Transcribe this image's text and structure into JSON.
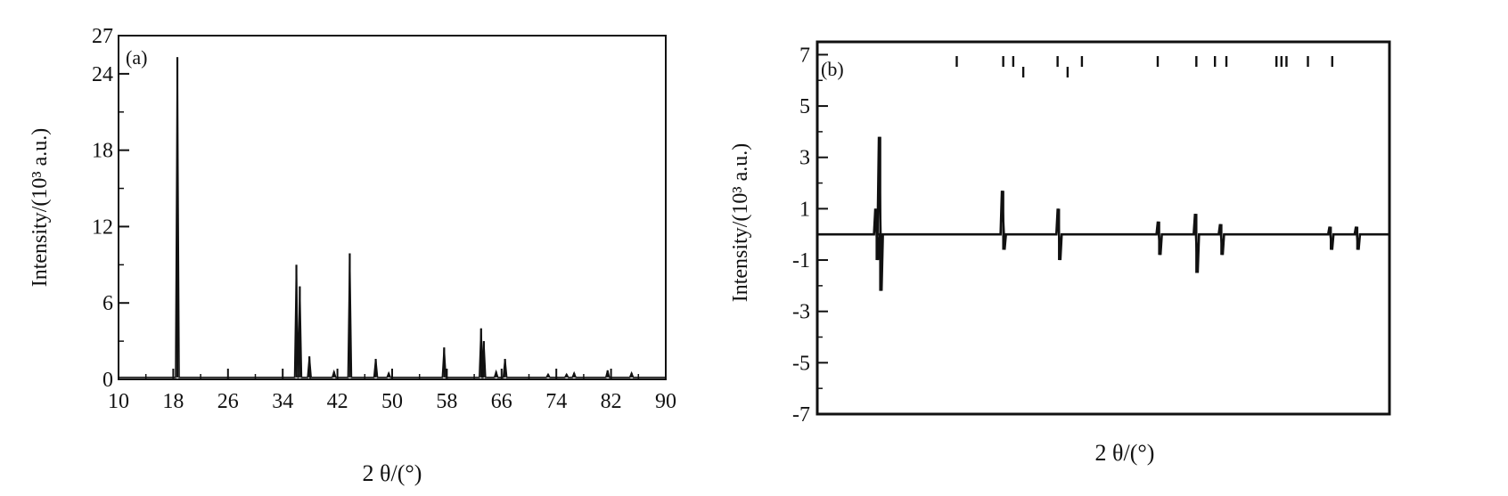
{
  "chart_data": [
    {
      "type": "line",
      "panel_label": "(a)",
      "xlabel": "2 θ/(°)",
      "ylabel": "Intensity/(10³ a.u.)",
      "xlim": [
        10,
        90
      ],
      "ylim": [
        0,
        27
      ],
      "xticks": [
        10,
        18,
        26,
        34,
        42,
        50,
        58,
        66,
        74,
        82,
        90
      ],
      "yticks": [
        0,
        6,
        12,
        18,
        24,
        27
      ],
      "baseline": 0.15,
      "peaks": [
        {
          "x": 18.6,
          "y": 25.3
        },
        {
          "x": 36.0,
          "y": 9.0
        },
        {
          "x": 36.5,
          "y": 7.3
        },
        {
          "x": 37.9,
          "y": 1.8
        },
        {
          "x": 41.5,
          "y": 0.6
        },
        {
          "x": 43.8,
          "y": 9.9
        },
        {
          "x": 47.6,
          "y": 1.6
        },
        {
          "x": 49.5,
          "y": 0.5
        },
        {
          "x": 57.6,
          "y": 2.5
        },
        {
          "x": 63.0,
          "y": 4.0
        },
        {
          "x": 63.4,
          "y": 3.0
        },
        {
          "x": 65.2,
          "y": 0.6
        },
        {
          "x": 66.5,
          "y": 1.6
        },
        {
          "x": 72.8,
          "y": 0.4
        },
        {
          "x": 75.5,
          "y": 0.4
        },
        {
          "x": 76.6,
          "y": 0.5
        },
        {
          "x": 81.5,
          "y": 0.7
        },
        {
          "x": 85.0,
          "y": 0.5
        }
      ]
    },
    {
      "type": "line",
      "panel_label": "(b)",
      "xlabel": "2 θ/(°)",
      "ylabel": "Intensity/(10³ a.u.)",
      "xlim": [
        10,
        90
      ],
      "ylim": [
        -7,
        7.5
      ],
      "yticks": [
        -7,
        -5,
        -3,
        -1,
        1,
        3,
        5,
        7
      ],
      "baseline": 0.0,
      "features": [
        {
          "x": 18.3,
          "pos": 1.0,
          "neg": -1.0
        },
        {
          "x": 18.8,
          "pos": 3.8,
          "neg": -2.2
        },
        {
          "x": 36.0,
          "pos": 1.7,
          "neg": -0.6
        },
        {
          "x": 43.8,
          "pos": 1.0,
          "neg": -1.0
        },
        {
          "x": 57.8,
          "pos": 0.5,
          "neg": -0.8
        },
        {
          "x": 63.0,
          "pos": 0.8,
          "neg": -1.5
        },
        {
          "x": 66.5,
          "pos": 0.4,
          "neg": -0.8
        },
        {
          "x": 81.8,
          "pos": 0.3,
          "neg": -0.6
        },
        {
          "x": 85.5,
          "pos": 0.3,
          "neg": -0.6
        }
      ],
      "reflection_markers": [
        {
          "x": 29.5,
          "row": "upper"
        },
        {
          "x": 36.0,
          "row": "upper"
        },
        {
          "x": 37.4,
          "row": "upper"
        },
        {
          "x": 38.8,
          "row": "lower"
        },
        {
          "x": 43.6,
          "row": "upper"
        },
        {
          "x": 45.0,
          "row": "lower"
        },
        {
          "x": 47.0,
          "row": "upper"
        },
        {
          "x": 57.6,
          "row": "upper"
        },
        {
          "x": 63.0,
          "row": "upper"
        },
        {
          "x": 65.6,
          "row": "upper"
        },
        {
          "x": 67.2,
          "row": "upper"
        },
        {
          "x": 74.2,
          "row": "upper"
        },
        {
          "x": 74.9,
          "row": "upper"
        },
        {
          "x": 75.6,
          "row": "upper"
        },
        {
          "x": 78.6,
          "row": "upper"
        },
        {
          "x": 82.0,
          "row": "upper"
        }
      ]
    }
  ]
}
